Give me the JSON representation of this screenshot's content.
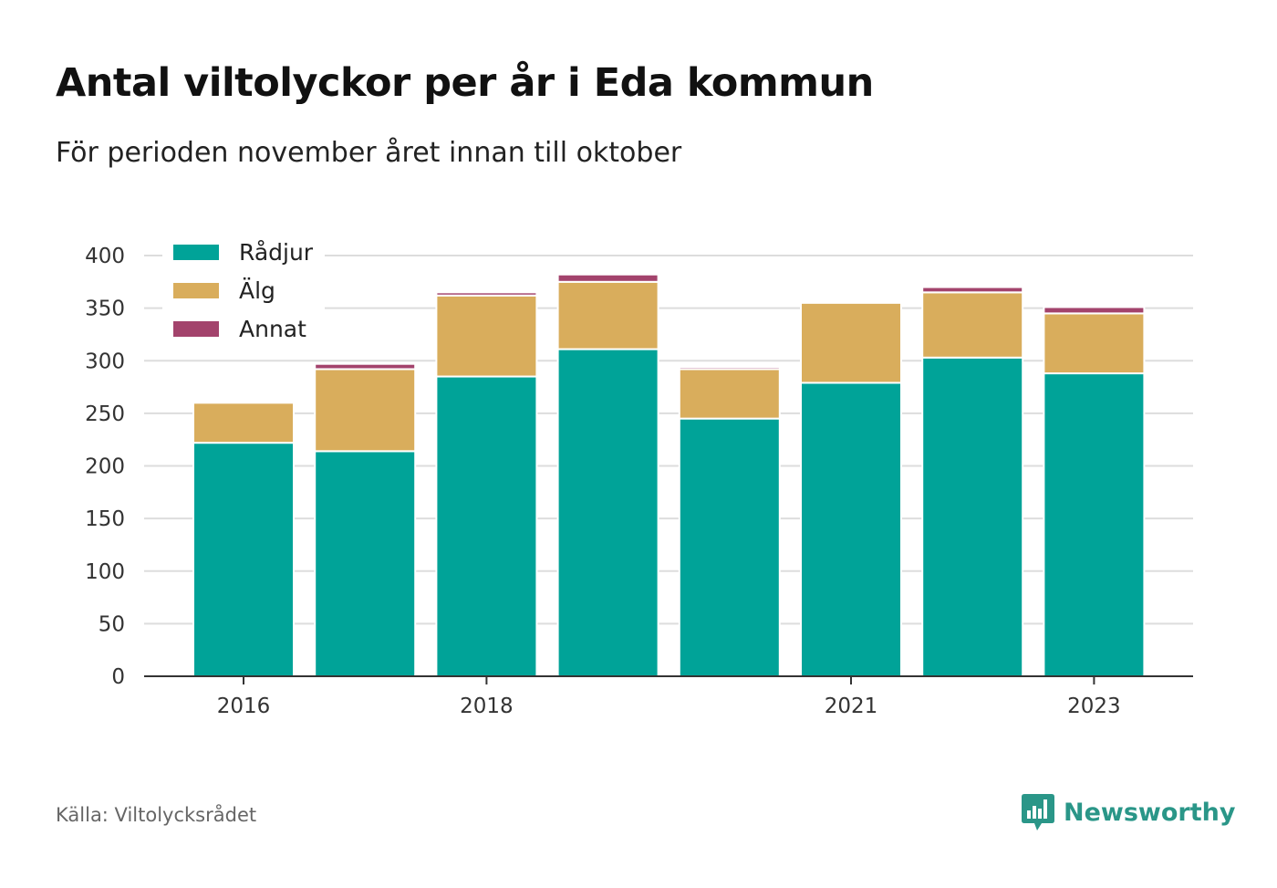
{
  "title": "Antal viltolyckor per år i Eda kommun",
  "subtitle": "För perioden november året innan till oktober",
  "source": "Källa: Viltolycksrådet",
  "brand": {
    "name": "Newsworthy",
    "icon": "bar-chart-speech-bubble-icon",
    "color": "#2a9688"
  },
  "chart_data": {
    "type": "bar",
    "stacked": true,
    "categories": [
      "2016",
      "2017",
      "2018",
      "2019",
      "2020",
      "2021",
      "2022",
      "2023"
    ],
    "x_tick_labels": [
      "2016",
      "2018",
      "2021",
      "2023"
    ],
    "series": [
      {
        "name": "Rådjur",
        "color": "#00a398",
        "values": [
          222,
          214,
          285,
          311,
          245,
          279,
          303,
          288
        ]
      },
      {
        "name": "Älg",
        "color": "#d9ad5c",
        "values": [
          38,
          78,
          77,
          64,
          47,
          76,
          62,
          57
        ]
      },
      {
        "name": "Annat",
        "color": "#a3436c",
        "values": [
          0,
          5,
          3,
          7,
          2,
          0,
          5,
          6
        ]
      }
    ],
    "ylim": [
      0,
      400
    ],
    "yticks": [
      0,
      50,
      100,
      150,
      200,
      250,
      300,
      350,
      400
    ],
    "grid": true,
    "legend": "top-left",
    "xlabel": "",
    "ylabel": ""
  }
}
